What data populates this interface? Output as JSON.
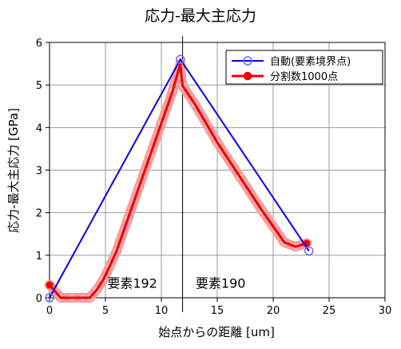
{
  "chart_data": {
    "type": "line",
    "title": "応力‐最大主応力",
    "xlabel": "始点からの距離 [um]",
    "ylabel": "応力‐最大主応力 [GPa]",
    "xlim": [
      0,
      30
    ],
    "ylim": [
      0,
      6
    ],
    "xticks": [
      "0",
      "5",
      "10",
      "15",
      "20",
      "25",
      "30"
    ],
    "yticks": [
      "0",
      "1",
      "2",
      "3",
      "4",
      "5",
      "6"
    ],
    "grid": true,
    "legend_position": "top-right",
    "vline": {
      "x": 11.9
    },
    "annotations": [
      {
        "text": "要素192",
        "x": 7.4,
        "y": 0.35
      },
      {
        "text": "要素190",
        "x": 15.3,
        "y": 0.35
      }
    ],
    "series": [
      {
        "name": "自動(要素境界点)",
        "color": "#0000ee",
        "marker": "open-circle",
        "x": [
          0.0,
          11.7,
          23.2
        ],
        "y": [
          0.0,
          5.6,
          1.1
        ]
      },
      {
        "name": "分割数1000点",
        "color": "#ee0000",
        "marker": "filled-circle-endpoints",
        "x": [
          0.0,
          1.0,
          2.0,
          3.0,
          3.6,
          4.2,
          4.8,
          5.4,
          6.0,
          7.0,
          8.0,
          9.0,
          10.0,
          11.0,
          11.7,
          11.8,
          11.9,
          13.0,
          15.0,
          17.0,
          19.0,
          21.0,
          22.0,
          23.0
        ],
        "y": [
          0.3,
          0.0,
          0.0,
          0.0,
          0.0,
          0.18,
          0.42,
          0.75,
          1.1,
          1.85,
          2.6,
          3.35,
          4.1,
          4.85,
          5.5,
          5.2,
          4.98,
          4.55,
          3.65,
          2.85,
          2.05,
          1.3,
          1.2,
          1.28
        ]
      }
    ]
  }
}
